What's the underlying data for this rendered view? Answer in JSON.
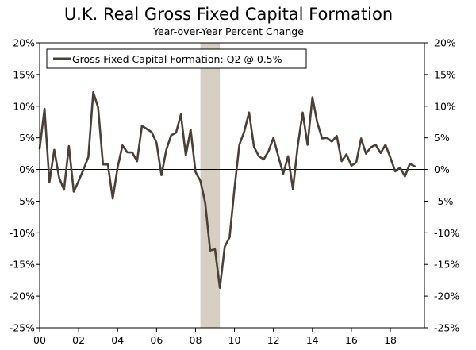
{
  "chart_data": {
    "type": "line",
    "title": "U.K. Real Gross Fixed Capital Formation",
    "subtitle": "Year-over-Year Percent Change",
    "xlabel": "",
    "ylabel": "",
    "ylim": [
      -25,
      20
    ],
    "xlim": [
      2000.0,
      2019.75
    ],
    "x_tick_labels": [
      "00",
      "02",
      "04",
      "06",
      "08",
      "10",
      "12",
      "14",
      "16",
      "18"
    ],
    "x_tick_years": [
      2000,
      2002,
      2004,
      2006,
      2008,
      2010,
      2012,
      2014,
      2016,
      2018
    ],
    "y_tick_labels": [
      "20%",
      "15%",
      "10%",
      "5%",
      "0%",
      "-5%",
      "-10%",
      "-15%",
      "-20%",
      "-25%"
    ],
    "y_tick_values": [
      20,
      15,
      10,
      5,
      0,
      -5,
      -10,
      -15,
      -20,
      -25
    ],
    "grid": false,
    "zero_line": true,
    "legend_position": "top-left",
    "recession_shading": [
      [
        2008.25,
        2009.25
      ]
    ],
    "series": [
      {
        "name": "Gross Fixed Capital Formation: Q2 @ 0.5%",
        "color": "#4a4038",
        "x": [
          2000.0,
          2000.25,
          2000.5,
          2000.75,
          2001.0,
          2001.25,
          2001.5,
          2001.75,
          2002.0,
          2002.25,
          2002.5,
          2002.75,
          2003.0,
          2003.25,
          2003.5,
          2003.75,
          2004.0,
          2004.25,
          2004.5,
          2004.75,
          2005.0,
          2005.25,
          2005.5,
          2005.75,
          2006.0,
          2006.25,
          2006.5,
          2006.75,
          2007.0,
          2007.25,
          2007.5,
          2007.75,
          2008.0,
          2008.25,
          2008.5,
          2008.75,
          2009.0,
          2009.25,
          2009.5,
          2009.75,
          2010.0,
          2010.25,
          2010.5,
          2010.75,
          2011.0,
          2011.25,
          2011.5,
          2011.75,
          2012.0,
          2012.25,
          2012.5,
          2012.75,
          2013.0,
          2013.25,
          2013.5,
          2013.75,
          2014.0,
          2014.25,
          2014.5,
          2014.75,
          2015.0,
          2015.25,
          2015.5,
          2015.75,
          2016.0,
          2016.25,
          2016.5,
          2016.75,
          2017.0,
          2017.25,
          2017.5,
          2017.75,
          2018.0,
          2018.25,
          2018.5,
          2018.75,
          2019.0,
          2019.25
        ],
        "values": [
          3.3,
          9.6,
          -2.0,
          3.1,
          -1.3,
          -3.2,
          3.7,
          -3.5,
          -1.8,
          0.0,
          2.0,
          12.2,
          9.8,
          0.8,
          0.8,
          -4.6,
          0.3,
          3.8,
          2.7,
          2.7,
          1.3,
          6.9,
          6.4,
          5.9,
          4.2,
          -0.9,
          3.1,
          5.4,
          5.8,
          8.7,
          2.2,
          6.3,
          -0.4,
          -1.8,
          -5.3,
          -12.8,
          -12.6,
          -18.7,
          -12.2,
          -10.7,
          -3.0,
          3.9,
          6.0,
          9.0,
          3.6,
          2.1,
          1.6,
          2.9,
          5.0,
          2.1,
          -0.7,
          2.1,
          -3.1,
          3.8,
          9.0,
          3.9,
          11.4,
          7.4,
          4.9,
          5.0,
          4.4,
          5.3,
          1.3,
          2.4,
          0.6,
          1.1,
          4.9,
          2.5,
          3.5,
          3.9,
          2.6,
          3.9,
          1.9,
          -0.3,
          0.3,
          -1.1,
          0.9,
          0.5
        ]
      }
    ]
  }
}
